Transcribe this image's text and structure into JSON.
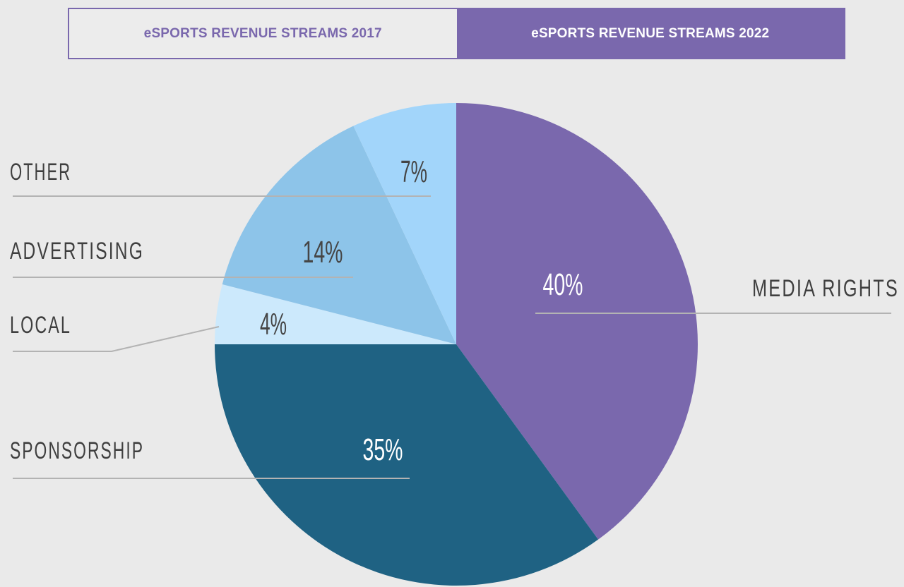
{
  "tabs": {
    "tab_2017": "eSPORTS REVENUE STREAMS 2017",
    "tab_2022": "eSPORTS REVENUE STREAMS 2022",
    "active": "tab_2022"
  },
  "colors": {
    "media_rights": "#7a68ad",
    "sponsorship": "#1f6283",
    "local": "#cce9fc",
    "advertising": "#8dc4e9",
    "other": "#a2d5fa",
    "accent": "#7a68ad",
    "background": "#eaeaea"
  },
  "chart_data": {
    "type": "pie",
    "title": "eSPORTS REVENUE STREAMS 2022",
    "start": "12 o'clock",
    "direction": "clockwise",
    "slices": [
      {
        "label": "MEDIA RIGHTS",
        "value": 40,
        "display": "40%",
        "color": "#7a68ad",
        "text_color": "#ffffff"
      },
      {
        "label": "SPONSORSHIP",
        "value": 35,
        "display": "35%",
        "color": "#1f6283",
        "text_color": "#ffffff"
      },
      {
        "label": "LOCAL",
        "value": 4,
        "display": "4%",
        "color": "#cce9fc",
        "text_color": "#454545"
      },
      {
        "label": "ADVERTISING",
        "value": 14,
        "display": "14%",
        "color": "#8dc4e9",
        "text_color": "#454545"
      },
      {
        "label": "OTHER",
        "value": 7,
        "display": "7%",
        "color": "#a2d5fa",
        "text_color": "#454545"
      }
    ]
  }
}
